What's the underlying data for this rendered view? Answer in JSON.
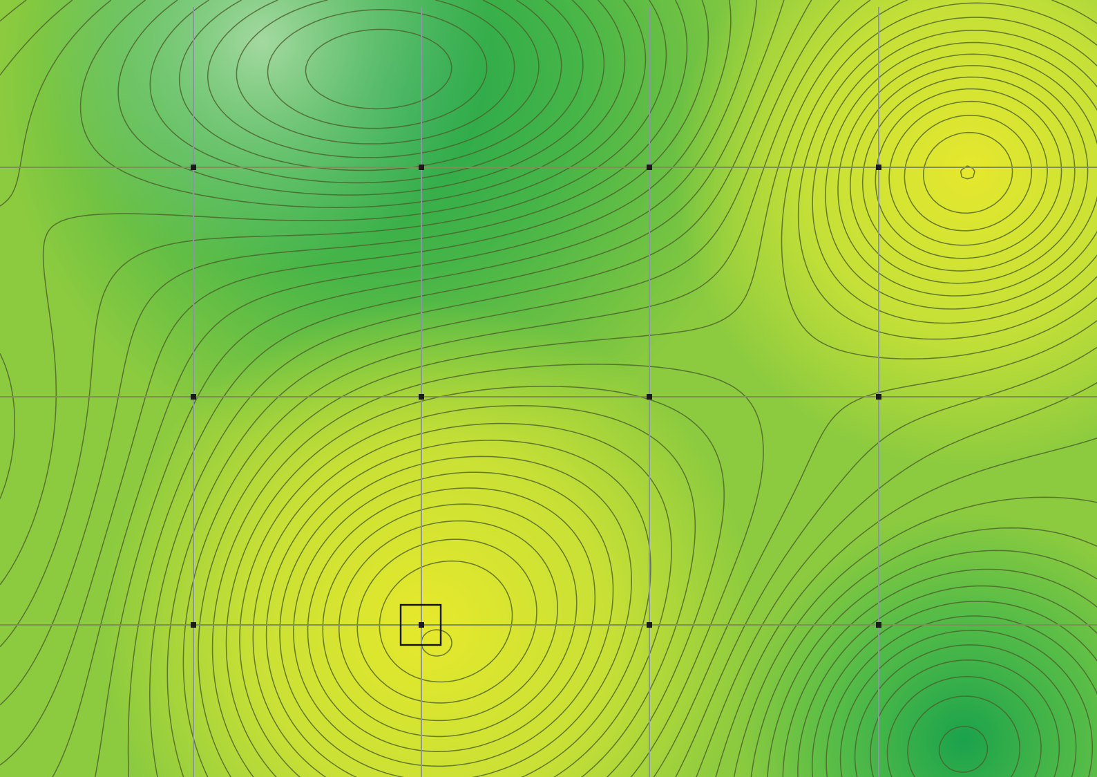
{
  "map": {
    "style": "filled contour heatmap with isolines",
    "colors": {
      "top_bar": "#bf2027",
      "palette": [
        "#0f9b4a",
        "#38b249",
        "#7ac943",
        "#b7dd3a",
        "#e6e82d"
      ],
      "contour_line": "#4b5f2c",
      "grid_line": "#8d94a6",
      "node_marker": "#1b1b1b",
      "selection_box": "#111111"
    },
    "grid": {
      "columns": 4,
      "rows": 3,
      "node_marker": "square-node-icon",
      "selected_node": {
        "column": 2,
        "row": 3
      }
    },
    "features": [
      {
        "kind": "peak",
        "location": "upper-right"
      },
      {
        "kind": "peak",
        "location": "lower-center"
      },
      {
        "kind": "trough",
        "location": "upper-center"
      },
      {
        "kind": "trough",
        "location": "lower-right"
      }
    ]
  }
}
